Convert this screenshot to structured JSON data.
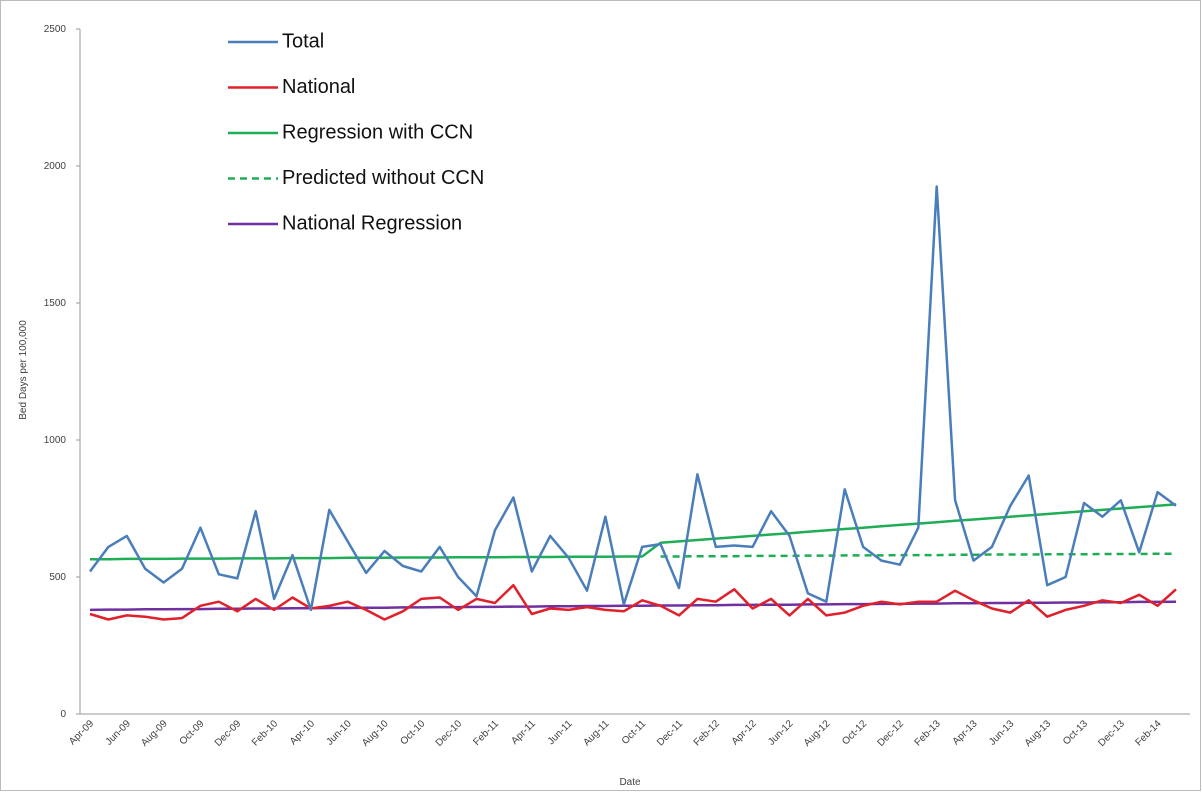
{
  "chart_data": {
    "type": "line",
    "y_label": "Bed Days per 100,000",
    "x_label": "Date",
    "categories": [
      "Apr-09",
      null,
      "Jun-09",
      null,
      "Aug-09",
      null,
      "Oct-09",
      null,
      "Dec-09",
      null,
      "Feb-10",
      null,
      "Apr-10",
      null,
      "Jun-10",
      null,
      "Aug-10",
      null,
      "Oct-10",
      null,
      "Dec-10",
      null,
      "Feb-11",
      null,
      "Apr-11",
      null,
      "Jun-11",
      null,
      "Aug-11",
      null,
      "Oct-11",
      null,
      "Dec-11",
      null,
      "Feb-12",
      null,
      "Apr-12",
      null,
      "Jun-12",
      null,
      "Aug-12",
      null,
      "Oct-12",
      null,
      "Dec-12",
      null,
      "Feb-13",
      null,
      "Apr-13",
      null,
      "Jun-13",
      null,
      "Aug-13",
      null,
      "Oct-13",
      null,
      "Dec-13",
      null,
      "Feb-14",
      null
    ],
    "ylim": [
      0,
      2500
    ],
    "yticks": [
      0,
      500,
      1000,
      1500,
      2000,
      2500
    ],
    "series": [
      {
        "name": "Total",
        "color": "#4a7ebb",
        "dashed": false,
        "values": [
          520,
          610,
          650,
          530,
          480,
          530,
          680,
          510,
          495,
          740,
          420,
          580,
          380,
          745,
          630,
          515,
          595,
          540,
          520,
          610,
          500,
          430,
          670,
          790,
          520,
          650,
          570,
          450,
          720,
          400,
          610,
          620,
          460,
          875,
          610,
          615,
          610,
          740,
          650,
          440,
          410,
          820,
          610,
          560,
          545,
          680,
          1925,
          780,
          560,
          610,
          760,
          870,
          470,
          500,
          770,
          720,
          780,
          590,
          810,
          760
        ]
      },
      {
        "name": "National",
        "color": "#e0202a",
        "dashed": false,
        "values": [
          365,
          345,
          360,
          355,
          345,
          350,
          395,
          410,
          375,
          420,
          380,
          425,
          385,
          395,
          410,
          380,
          345,
          375,
          420,
          425,
          380,
          420,
          405,
          470,
          365,
          385,
          380,
          390,
          380,
          375,
          415,
          395,
          360,
          420,
          410,
          455,
          385,
          420,
          360,
          420,
          360,
          370,
          395,
          410,
          400,
          410,
          410,
          450,
          415,
          385,
          370,
          415,
          355,
          380,
          395,
          415,
          405,
          435,
          395,
          455
        ]
      },
      {
        "name": "Regression with CCN",
        "color": "#1fae55",
        "dashed": false,
        "values": [
          565,
          565,
          566,
          566,
          566,
          567,
          567,
          567,
          568,
          568,
          568,
          569,
          569,
          569,
          570,
          570,
          570,
          571,
          571,
          571,
          572,
          572,
          572,
          573,
          573,
          573,
          574,
          574,
          574,
          575,
          575,
          625,
          630,
          635,
          640,
          645,
          650,
          655,
          660,
          665,
          670,
          675,
          680,
          685,
          690,
          695,
          700,
          705,
          710,
          715,
          720,
          725,
          730,
          735,
          740,
          745,
          750,
          755,
          760,
          765
        ]
      },
      {
        "name": "Predicted without CCN",
        "color": "#1fae55",
        "dashed": true,
        "values": [
          null,
          null,
          null,
          null,
          null,
          null,
          null,
          null,
          null,
          null,
          null,
          null,
          null,
          null,
          null,
          null,
          null,
          null,
          null,
          null,
          null,
          null,
          null,
          null,
          null,
          null,
          null,
          null,
          null,
          null,
          null,
          575,
          575,
          576,
          576,
          576,
          577,
          577,
          577,
          578,
          578,
          579,
          579,
          579,
          580,
          580,
          580,
          581,
          581,
          582,
          582,
          582,
          583,
          583,
          583,
          584,
          584,
          584,
          585,
          585
        ]
      },
      {
        "name": "National Regression",
        "color": "#7030a0",
        "dashed": false,
        "values": [
          380,
          381,
          381,
          382,
          382,
          383,
          383,
          384,
          384,
          385,
          385,
          386,
          386,
          387,
          387,
          388,
          388,
          389,
          389,
          390,
          390,
          391,
          391,
          392,
          392,
          393,
          393,
          394,
          394,
          395,
          395,
          396,
          396,
          397,
          397,
          398,
          398,
          399,
          399,
          400,
          400,
          401,
          401,
          402,
          402,
          403,
          403,
          404,
          404,
          405,
          405,
          406,
          406,
          407,
          407,
          408,
          408,
          409,
          409,
          410
        ]
      }
    ]
  }
}
